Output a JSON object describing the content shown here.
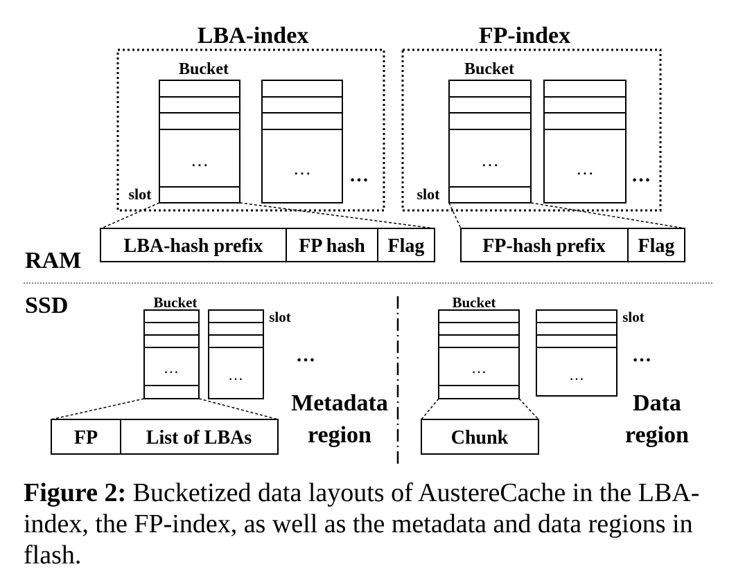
{
  "lba_index": {
    "title": "LBA-index",
    "bucket_label": "Bucket",
    "slot_label": "slot",
    "dots": "…",
    "more": "…",
    "entry_fields": [
      "LBA-hash prefix",
      "FP hash",
      "Flag"
    ]
  },
  "fp_index": {
    "title": "FP-index",
    "bucket_label": "Bucket",
    "slot_label": "slot",
    "dots": "…",
    "more": "…",
    "entry_fields": [
      "FP-hash prefix",
      "Flag"
    ]
  },
  "ram_label": "RAM",
  "ssd_label": "SSD",
  "metadata_region": {
    "bucket_label": "Bucket",
    "slot_label": "slot",
    "dots": "…",
    "more": "…",
    "entry_fields": [
      "FP",
      "List of LBAs"
    ],
    "region_label_line1": "Metadata",
    "region_label_line2": "region"
  },
  "data_region": {
    "bucket_label": "Bucket",
    "slot_label": "slot",
    "dots": "…",
    "more": "…",
    "entry_fields": [
      "Chunk"
    ],
    "region_label_line1": "Data",
    "region_label_line2": "region"
  },
  "caption": {
    "label": "Figure 2:",
    "text": "Bucketized data layouts of AustereCache in the LBA-index, the FP-index, as well as the metadata and data regions in flash."
  }
}
